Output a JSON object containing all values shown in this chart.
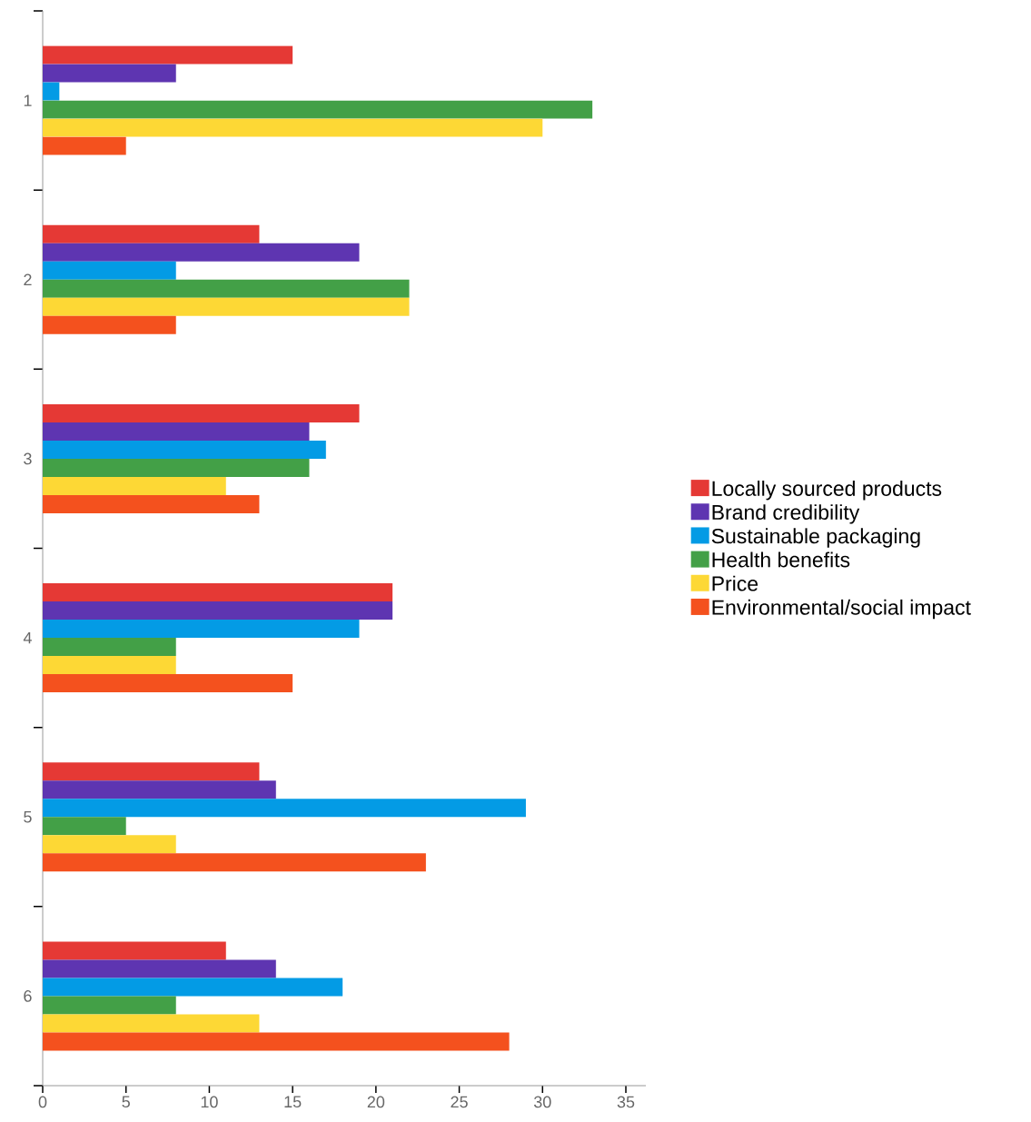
{
  "chart_data": {
    "type": "bar",
    "orientation": "horizontal",
    "categories": [
      "1",
      "2",
      "3",
      "4",
      "5",
      "6"
    ],
    "series": [
      {
        "name": "Locally sourced products",
        "color": "#e53935",
        "values": [
          15,
          13,
          19,
          21,
          13,
          11
        ]
      },
      {
        "name": "Brand credibility",
        "color": "#5e35b1",
        "values": [
          8,
          19,
          16,
          21,
          14,
          14
        ]
      },
      {
        "name": "Sustainable packaging",
        "color": "#039be5",
        "values": [
          1,
          8,
          17,
          19,
          29,
          18
        ]
      },
      {
        "name": "Health benefits",
        "color": "#43a047",
        "values": [
          33,
          22,
          16,
          8,
          5,
          8
        ]
      },
      {
        "name": "Price",
        "color": "#fdd835",
        "values": [
          30,
          22,
          11,
          8,
          8,
          13
        ]
      },
      {
        "name": "Environmental/social impact",
        "color": "#f4511e",
        "values": [
          5,
          8,
          13,
          15,
          23,
          28
        ]
      }
    ],
    "xlim": [
      0,
      36.2
    ],
    "xticks": [
      0,
      5,
      10,
      15,
      20,
      25,
      30,
      35
    ],
    "legend": "right"
  }
}
